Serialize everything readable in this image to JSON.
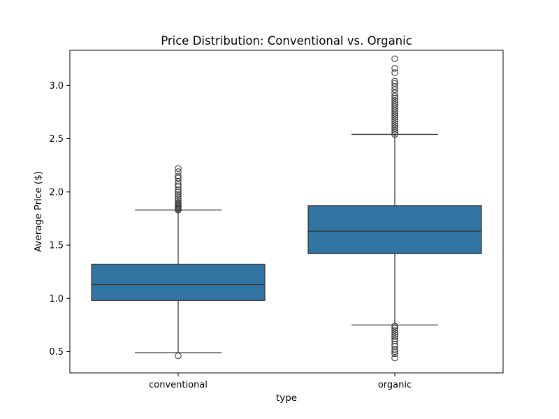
{
  "chart_data": {
    "type": "box",
    "title": "Price Distribution: Conventional vs. Organic",
    "xlabel": "type",
    "ylabel": "Average Price ($)",
    "ylim": [
      0.3,
      3.33
    ],
    "yticks": [
      0.5,
      1.0,
      1.5,
      2.0,
      2.5,
      3.0
    ],
    "ytick_labels": [
      "0.5",
      "1.0",
      "1.5",
      "2.0",
      "2.5",
      "3.0"
    ],
    "grid": false,
    "box_color": "#3274a1",
    "edge_color": "#3b3b3b",
    "categories": [
      "conventional",
      "organic"
    ],
    "boxes": [
      {
        "category": "conventional",
        "whisker_low": 0.49,
        "q1": 0.98,
        "median": 1.13,
        "q3": 1.32,
        "whisker_high": 1.83,
        "outliers": [
          0.46,
          1.83,
          1.84,
          1.85,
          1.86,
          1.87,
          1.88,
          1.89,
          1.9,
          1.92,
          1.94,
          1.96,
          1.98,
          2.0,
          2.02,
          2.05,
          2.07,
          2.1,
          2.13,
          2.15,
          2.19,
          2.22
        ]
      },
      {
        "category": "organic",
        "whisker_low": 0.75,
        "q1": 1.42,
        "median": 1.63,
        "q3": 1.87,
        "whisker_high": 2.54,
        "outliers": [
          0.44,
          0.48,
          0.5,
          0.52,
          0.55,
          0.57,
          0.6,
          0.62,
          0.64,
          0.66,
          0.68,
          0.7,
          0.72,
          0.74,
          2.54,
          2.56,
          2.58,
          2.6,
          2.62,
          2.64,
          2.66,
          2.68,
          2.7,
          2.72,
          2.74,
          2.76,
          2.78,
          2.8,
          2.82,
          2.84,
          2.86,
          2.88,
          2.9,
          2.93,
          2.96,
          2.99,
          3.02,
          3.04,
          3.12,
          3.16,
          3.25
        ]
      }
    ]
  }
}
